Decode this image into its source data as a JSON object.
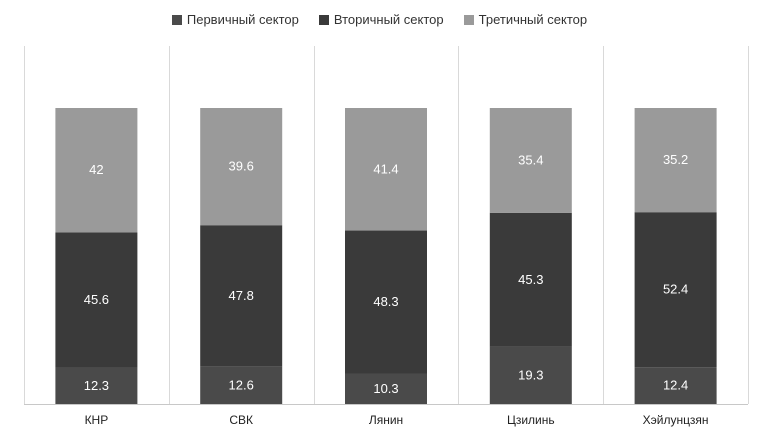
{
  "chart_data": {
    "type": "bar",
    "stacked": true,
    "normalized": true,
    "categories": [
      "КНР",
      "СВК",
      "Лянин",
      "Цзилинь",
      "Хэйлунцзян"
    ],
    "series": [
      {
        "name": "Первичный сектор",
        "color": "#4a4a4a",
        "values": [
          12.3,
          12.6,
          10.3,
          19.3,
          12.4
        ],
        "labels": [
          "12.3",
          "12.6",
          "10.3",
          "19.3",
          "12.4"
        ]
      },
      {
        "name": "Вторичный сектор",
        "color": "#3a3a3a",
        "values": [
          45.6,
          47.8,
          48.3,
          45.3,
          52.4
        ],
        "labels": [
          "45.6",
          "47.8",
          "48.3",
          "45.3",
          "52.4"
        ]
      },
      {
        "name": "Третичный сектор",
        "color": "#9a9a9a",
        "values": [
          42,
          39.6,
          41.4,
          35.4,
          35.2
        ],
        "labels": [
          "42",
          "39.6",
          "41.4",
          "35.4",
          "35.2"
        ]
      }
    ],
    "legend_position": "top",
    "grid": false
  }
}
